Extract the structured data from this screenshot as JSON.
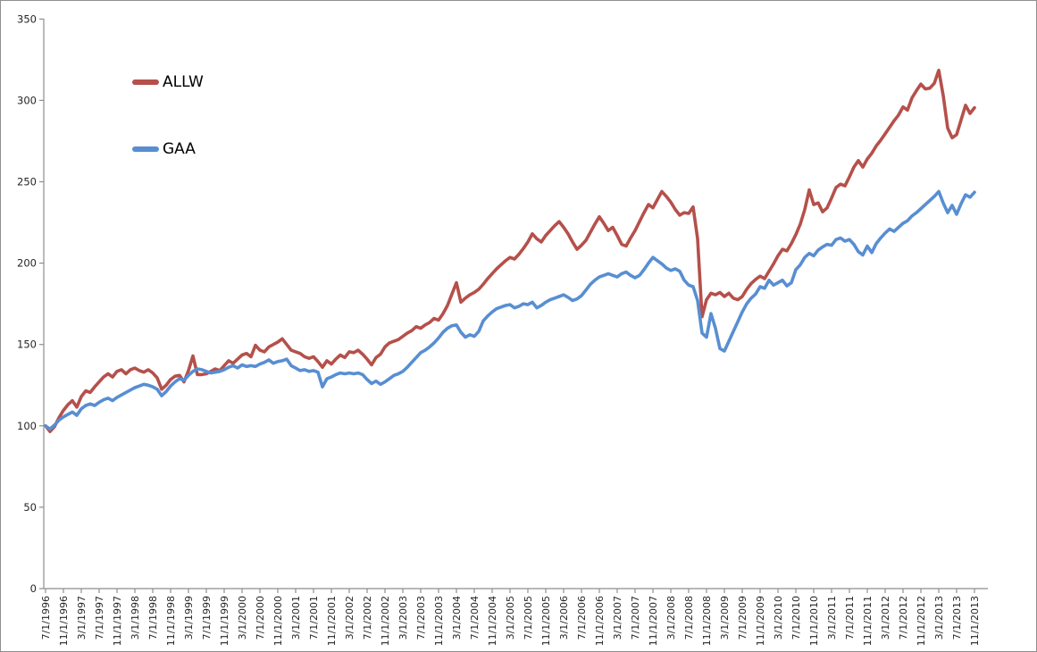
{
  "chart_data": {
    "type": "line",
    "title": "",
    "xlabel": "",
    "ylabel": "",
    "ylim": [
      0,
      350
    ],
    "grid": false,
    "legend_position": "inside-top-left",
    "x_start": "7/1/1996",
    "x_interval": "monthly",
    "y_ticks": [
      0,
      50,
      100,
      150,
      200,
      250,
      300,
      350
    ],
    "x_tick_labels": [
      "7/1/1996",
      "11/1/1996",
      "3/1/1997",
      "7/1/1997",
      "11/1/1997",
      "3/1/1998",
      "7/1/1998",
      "11/1/1998",
      "3/1/1999",
      "7/1/1999",
      "11/1/1999",
      "3/1/2000",
      "7/1/2000",
      "11/1/2000",
      "3/1/2001",
      "7/1/2001",
      "11/1/2001",
      "3/1/2002",
      "7/1/2002",
      "11/1/2002",
      "3/1/2003",
      "7/1/2003",
      "11/1/2003",
      "3/1/2004",
      "7/1/2004",
      "11/1/2004",
      "3/1/2005",
      "7/1/2005",
      "11/1/2005",
      "3/1/2006",
      "7/1/2006",
      "11/1/2006",
      "3/1/2007",
      "7/1/2007",
      "11/1/2007",
      "3/1/2008",
      "7/1/2008",
      "11/1/2008",
      "3/1/2009",
      "7/1/2009",
      "11/1/2009",
      "3/1/2010",
      "7/1/2010",
      "11/1/2010",
      "3/1/2011",
      "7/1/2011",
      "11/1/2011",
      "3/1/2012",
      "7/1/2012",
      "11/1/2012",
      "3/1/2013",
      "7/1/2013",
      "11/1/2013"
    ],
    "series": [
      {
        "name": "ALLW",
        "color": "#b5504a",
        "values": [
          100,
          96.5,
          99.5,
          105,
          109.5,
          113,
          115.5,
          111.5,
          118,
          121.5,
          120.5,
          124,
          127,
          130,
          132,
          130,
          133.5,
          134.5,
          132,
          134.5,
          135.5,
          134,
          133,
          134.5,
          132.5,
          129.5,
          122.5,
          125,
          128.5,
          130.5,
          131,
          127,
          134,
          143,
          131.5,
          131.5,
          132,
          133.5,
          135,
          134,
          137,
          140,
          138.5,
          141,
          143.5,
          144.5,
          142.5,
          149.5,
          146.5,
          145.5,
          148.5,
          150,
          151.5,
          153.5,
          150,
          146.5,
          145.5,
          144.5,
          142.5,
          141.5,
          142.5,
          139.5,
          136,
          140,
          138,
          141,
          143.5,
          142,
          145.5,
          145,
          146.5,
          144,
          141,
          137.5,
          142,
          144,
          148.5,
          151,
          152,
          153,
          155,
          157,
          158.5,
          161,
          160,
          162,
          163.5,
          166,
          165,
          169,
          174,
          181,
          188,
          176,
          178.5,
          180.5,
          182,
          184,
          187,
          190.5,
          193.5,
          196.5,
          199,
          201.5,
          203.5,
          202.5,
          205.5,
          209,
          213,
          218,
          215,
          213,
          217,
          220,
          223,
          225.5,
          222,
          218,
          213,
          208.5,
          211,
          214,
          219,
          224,
          228.5,
          224.5,
          220,
          222,
          217,
          211.5,
          210.5,
          215.5,
          220,
          225.5,
          231,
          236,
          234,
          239,
          244,
          241,
          237.5,
          233,
          229.5,
          231,
          230.5,
          234.5,
          215,
          167,
          177.5,
          181.5,
          180.5,
          182,
          179.5,
          181.5,
          178.5,
          177.5,
          179.5,
          184,
          187.5,
          190,
          192,
          190.5,
          195,
          199.5,
          204.5,
          208.5,
          207.5,
          212,
          217.5,
          224,
          233,
          245,
          236,
          237,
          231.5,
          234,
          240,
          246.5,
          248.5,
          247.5,
          253,
          259,
          263,
          259,
          264,
          267.5,
          272,
          275.5,
          279.5,
          283.5,
          287.5,
          291,
          296,
          294,
          301.5,
          306,
          310,
          307,
          307.5,
          310.5,
          318.5,
          303,
          283,
          277,
          279,
          288,
          297,
          292,
          295.5
        ]
      },
      {
        "name": "GAA",
        "color": "#588ed2",
        "values": [
          100,
          98,
          100.5,
          103.5,
          105.5,
          107,
          108.5,
          106.5,
          110.5,
          112.5,
          113.5,
          112.5,
          114.5,
          116,
          117,
          115.5,
          117.5,
          119,
          120.5,
          122,
          123.5,
          124.5,
          125.5,
          125,
          124,
          122.5,
          118.5,
          121,
          124.5,
          127,
          129,
          128,
          131,
          133.5,
          135,
          134.5,
          133.5,
          132.5,
          133,
          133.5,
          134.5,
          136,
          137,
          135.5,
          137.5,
          136.5,
          137,
          136.5,
          138,
          139,
          140.5,
          138.5,
          139.5,
          140,
          141,
          137,
          135.5,
          134,
          134.5,
          133.5,
          134,
          133,
          124,
          129,
          130,
          131.5,
          132.5,
          132,
          132.5,
          132,
          132.5,
          131.5,
          128.5,
          126,
          127.5,
          125.5,
          127,
          129,
          131,
          132,
          133.5,
          136,
          139,
          142,
          145,
          146.5,
          148.5,
          151,
          154,
          157.5,
          160,
          161.5,
          162,
          157.5,
          154.5,
          156,
          155,
          158,
          164.5,
          167.5,
          170,
          172,
          173,
          174,
          174.5,
          172.5,
          173.5,
          175,
          174.5,
          176,
          172.5,
          174,
          176,
          177.5,
          178.5,
          179.5,
          180.5,
          179,
          177,
          178,
          180,
          183.5,
          187,
          189.5,
          191.5,
          192.5,
          193.5,
          192.5,
          191.5,
          193.5,
          194.5,
          192.5,
          191,
          192.5,
          196,
          200,
          203.5,
          201.5,
          199.5,
          197,
          195.5,
          196.5,
          195,
          189.5,
          186.5,
          185.5,
          177,
          157,
          154.5,
          169,
          160,
          147.5,
          146,
          152,
          158,
          164,
          170,
          175,
          178.5,
          181,
          185.5,
          184.5,
          189.5,
          186.5,
          188,
          189.5,
          186,
          188,
          196,
          199,
          203.5,
          206,
          204.5,
          208,
          210,
          211.5,
          211,
          214.5,
          215.5,
          213.5,
          214.5,
          211.5,
          207,
          205,
          210.5,
          206.5,
          212,
          215.5,
          218.5,
          221,
          219.5,
          222,
          224.5,
          226,
          229,
          231,
          233.5,
          236,
          238.5,
          241,
          244,
          237,
          231,
          235.5,
          230,
          236.5,
          242,
          240.5,
          243.5
        ]
      }
    ]
  },
  "style": {
    "axis_color": "#8e8e8e",
    "label_color": "#262626",
    "background": "#ffffff",
    "line_width": 3.6
  }
}
